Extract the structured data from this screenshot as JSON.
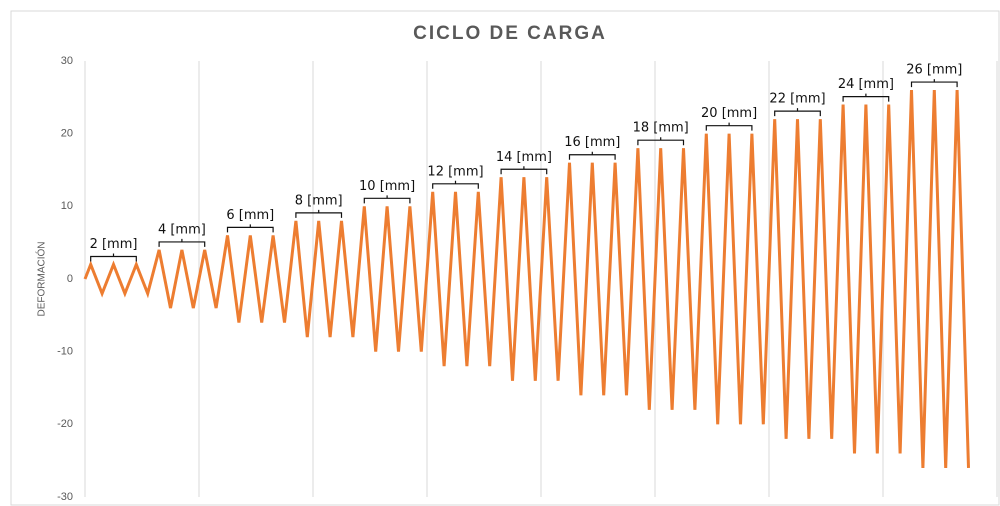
{
  "chart_data": {
    "type": "line",
    "title": "CICLO DE CARGA",
    "y_label": "DEFORMACIÓN",
    "x": [
      0,
      0.5,
      1.5,
      2.5,
      3.5,
      4.5,
      5.5,
      6.5,
      7.5,
      8.5,
      9.5,
      10.5,
      11.5,
      12.5,
      13.5,
      14.5,
      15.5,
      16.5,
      17.5,
      18.5,
      19.5,
      20.5,
      21.5,
      22.5,
      23.5,
      24.5,
      25.5,
      26.5,
      27.5,
      28.5,
      29.5,
      30.5,
      31.5,
      32.5,
      33.5,
      34.5,
      35.5,
      36.5,
      37.5,
      38.5,
      39.5,
      40.5,
      41.5,
      42.5,
      43.5,
      44.5,
      45.5,
      46.5,
      47.5,
      48.5,
      49.5,
      50.5,
      51.5,
      52.5,
      53.5,
      54.5,
      55.5,
      56.5,
      57.5,
      58.5,
      59.5,
      60.5,
      61.5,
      62.5,
      63.5,
      64.5,
      65.5,
      66.5,
      67.5,
      68.5,
      69.5,
      70.5,
      71.5,
      72.5,
      73.5,
      74.5,
      75.5,
      76.5,
      77.5
    ],
    "series": [
      {
        "color": "#ed7d31",
        "values": [
          0,
          2,
          -2,
          2,
          -2,
          2,
          -2,
          4,
          -4,
          4,
          -4,
          4,
          -4,
          6,
          -6,
          6,
          -6,
          6,
          -6,
          8,
          -8,
          8,
          -8,
          8,
          -8,
          10,
          -10,
          10,
          -10,
          10,
          -10,
          12,
          -12,
          12,
          -12,
          12,
          -12,
          14,
          -14,
          14,
          -14,
          14,
          -14,
          16,
          -16,
          16,
          -16,
          16,
          -16,
          18,
          -18,
          18,
          -18,
          18,
          -18,
          20,
          -20,
          20,
          -20,
          20,
          -20,
          22,
          -22,
          22,
          -22,
          22,
          -22,
          24,
          -24,
          24,
          -24,
          24,
          -24,
          26,
          -26,
          26,
          -26,
          26,
          -26
        ]
      }
    ],
    "annotations": [
      "2 [mm]",
      "4 [mm]",
      "6 [mm]",
      "8 [mm]",
      "10 [mm]",
      "12 [mm]",
      "14 [mm]",
      "16 [mm]",
      "18 [mm]",
      "20 [mm]",
      "22 [mm]",
      "24 [mm]",
      "26 [mm]"
    ],
    "xlim": [
      0,
      80
    ],
    "xticks": [
      0,
      10,
      20,
      30,
      40,
      50,
      60,
      70,
      80
    ],
    "ylim": [
      -30,
      30
    ],
    "yticks": [
      -30,
      -20,
      -10,
      0,
      10,
      20,
      30
    ],
    "grid": "x"
  }
}
